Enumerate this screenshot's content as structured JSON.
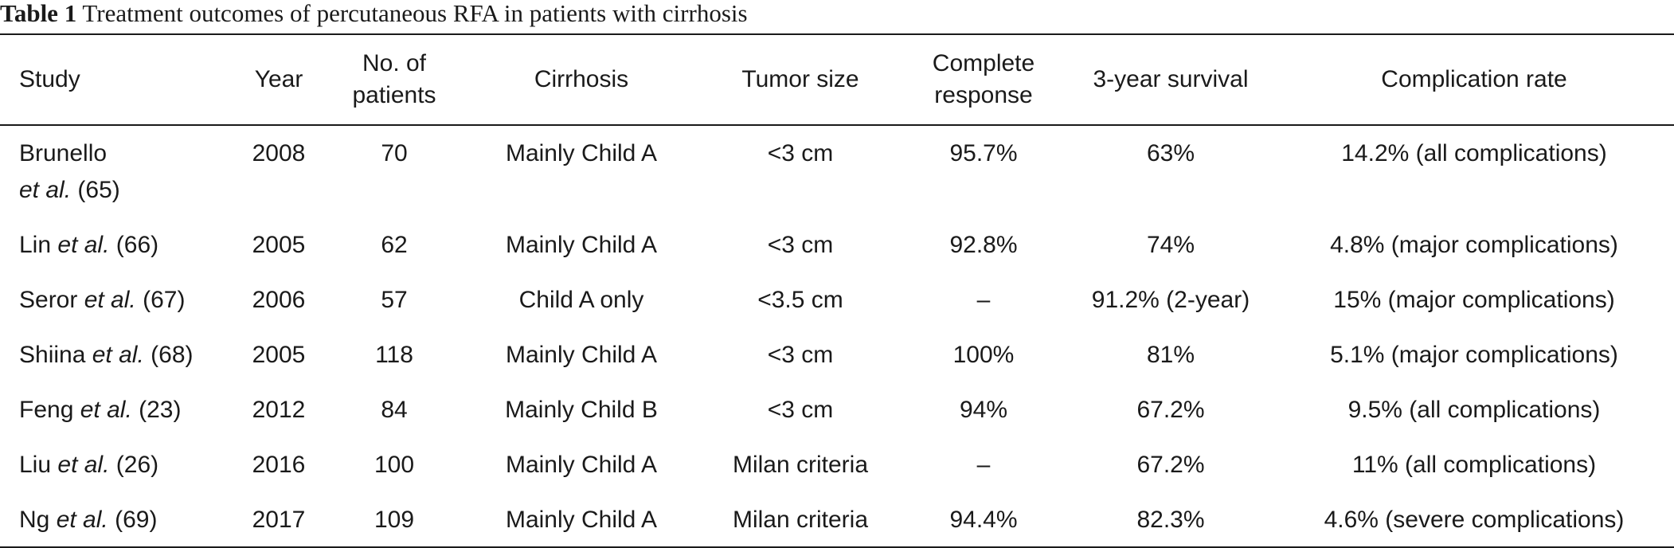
{
  "caption": {
    "label": "Table 1",
    "text": "Treatment outcomes of percutaneous RFA in patients with cirrhosis"
  },
  "headers": {
    "study": "Study",
    "year": "Year",
    "patients_line1": "No. of",
    "patients_line2": "patients",
    "cirrhosis": "Cirrhosis",
    "tumor_size": "Tumor size",
    "response_line1": "Complete",
    "response_line2": "response",
    "survival": "3-year survival",
    "complication": "Complication rate"
  },
  "rows": [
    {
      "author": "Brunello",
      "etal": "et al.",
      "ref": "(65)",
      "year": "2008",
      "patients": "70",
      "cirrhosis": "Mainly Child A",
      "tumor_size": "<3 cm",
      "response": "95.7%",
      "survival": "63%",
      "complication": "14.2% (all complications)"
    },
    {
      "author": "Lin",
      "etal": "et al.",
      "ref": "(66)",
      "year": "2005",
      "patients": "62",
      "cirrhosis": "Mainly Child A",
      "tumor_size": "<3 cm",
      "response": "92.8%",
      "survival": "74%",
      "complication": "4.8% (major complications)"
    },
    {
      "author": "Seror",
      "etal": "et al.",
      "ref": "(67)",
      "year": "2006",
      "patients": "57",
      "cirrhosis": "Child A only",
      "tumor_size": "<3.5 cm",
      "response": "–",
      "survival": "91.2% (2-year)",
      "complication": "15% (major complications)"
    },
    {
      "author": "Shiina",
      "etal": "et al.",
      "ref": "(68)",
      "year": "2005",
      "patients": "118",
      "cirrhosis": "Mainly Child A",
      "tumor_size": "<3 cm",
      "response": "100%",
      "survival": "81%",
      "complication": "5.1% (major complications)"
    },
    {
      "author": "Feng",
      "etal": "et al.",
      "ref": "(23)",
      "year": "2012",
      "patients": "84",
      "cirrhosis": "Mainly Child B",
      "tumor_size": "<3 cm",
      "response": "94%",
      "survival": "67.2%",
      "complication": "9.5% (all complications)"
    },
    {
      "author": "Liu",
      "etal": "et al.",
      "ref": "(26)",
      "year": "2016",
      "patients": "100",
      "cirrhosis": "Mainly Child A",
      "tumor_size": "Milan criteria",
      "response": "–",
      "survival": "67.2%",
      "complication": "11% (all complications)"
    },
    {
      "author": "Ng",
      "etal": "et al.",
      "ref": "(69)",
      "year": "2017",
      "patients": "109",
      "cirrhosis": "Mainly Child A",
      "tumor_size": "Milan criteria",
      "response": "94.4%",
      "survival": "82.3%",
      "complication": "4.6% (severe complications)"
    }
  ]
}
